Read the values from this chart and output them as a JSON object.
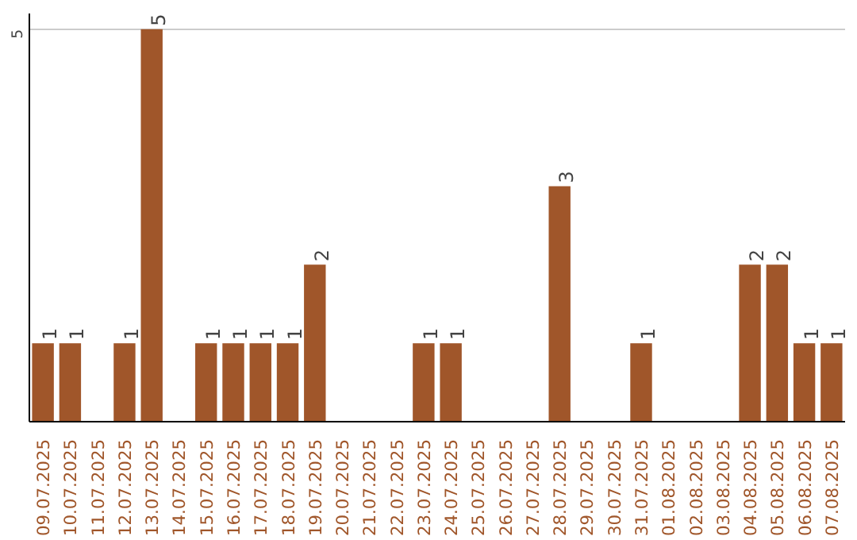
{
  "chart_data": {
    "type": "bar",
    "categories": [
      "09.07.2025",
      "10.07.2025",
      "11.07.2025",
      "12.07.2025",
      "13.07.2025",
      "14.07.2025",
      "15.07.2025",
      "16.07.2025",
      "17.07.2025",
      "18.07.2025",
      "19.07.2025",
      "20.07.2025",
      "21.07.2025",
      "22.07.2025",
      "23.07.2025",
      "24.07.2025",
      "25.07.2025",
      "26.07.2025",
      "27.07.2025",
      "28.07.2025",
      "29.07.2025",
      "30.07.2025",
      "31.07.2025",
      "01.08.2025",
      "02.08.2025",
      "03.08.2025",
      "04.08.2025",
      "05.08.2025",
      "06.08.2025",
      "07.08.2025"
    ],
    "values": [
      1,
      1,
      0,
      1,
      5,
      0,
      1,
      1,
      1,
      1,
      2,
      0,
      0,
      0,
      1,
      1,
      0,
      0,
      0,
      3,
      0,
      0,
      1,
      0,
      0,
      0,
      2,
      2,
      1,
      1
    ],
    "value_labels": [
      "1",
      "1",
      null,
      "1",
      "5",
      null,
      "1",
      "1",
      "1",
      "1",
      "2",
      null,
      null,
      null,
      "1",
      "1",
      null,
      null,
      null,
      "3",
      null,
      null,
      "1",
      null,
      null,
      null,
      "2",
      "2",
      "1",
      "1"
    ],
    "color": "#a0562a",
    "ylim": [
      0,
      5.2
    ],
    "yticks": [
      5
    ],
    "grid": "y"
  }
}
